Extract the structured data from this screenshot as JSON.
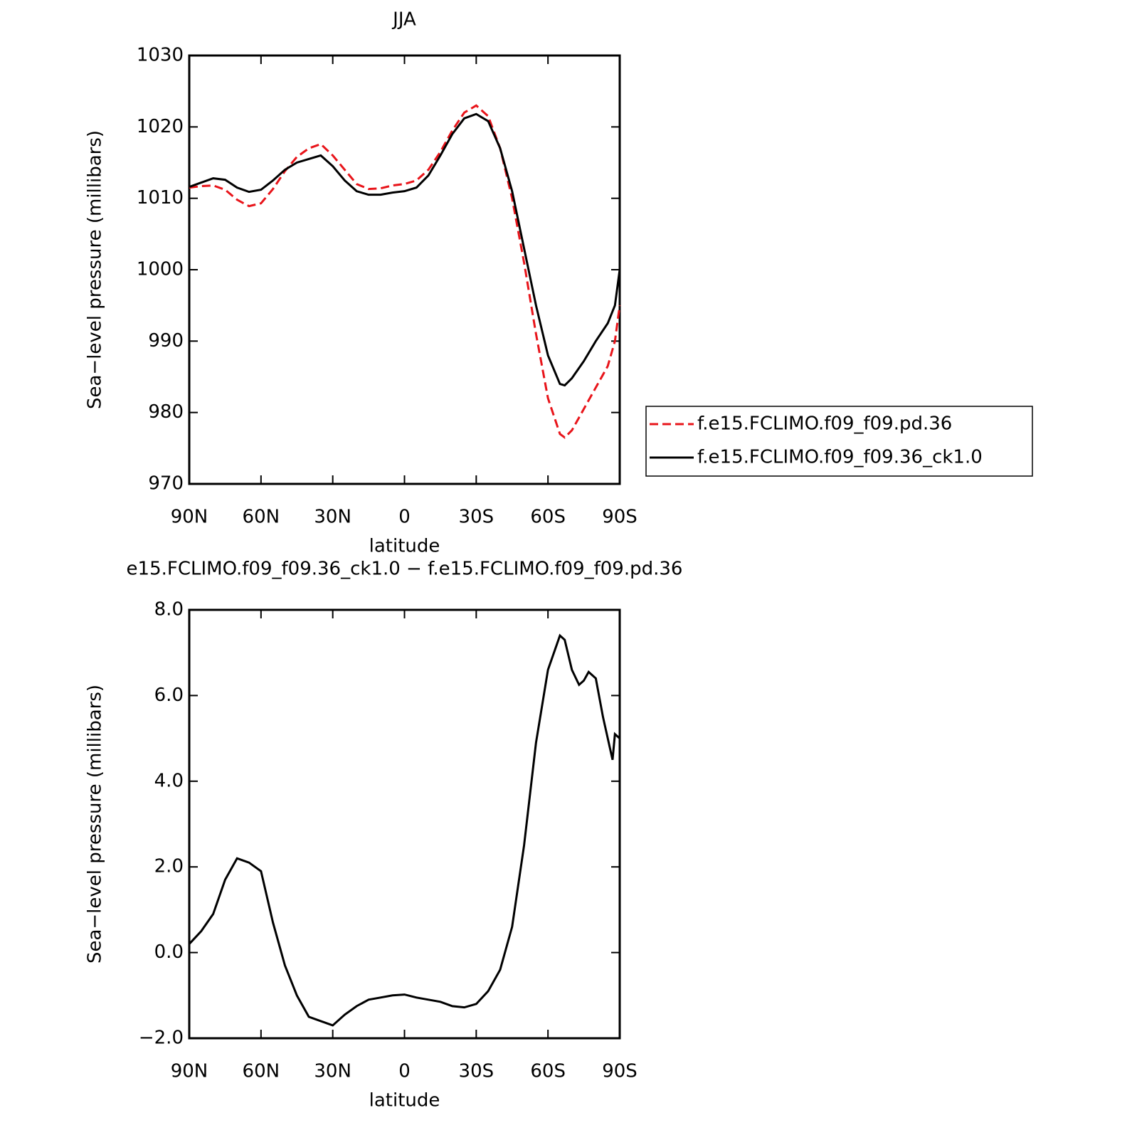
{
  "chart_data": [
    {
      "type": "line",
      "title": "JJA",
      "xlabel": "latitude",
      "ylabel": "Sea−level pressure (millibars)",
      "x": [
        90,
        85,
        80,
        75,
        70,
        65,
        60,
        55,
        50,
        45,
        40,
        35,
        30,
        25,
        20,
        15,
        10,
        5,
        0,
        -5,
        -10,
        -15,
        -20,
        -25,
        -30,
        -35,
        -40,
        -45,
        -50,
        -55,
        -60,
        -65,
        -67,
        -70,
        -75,
        -80,
        -85,
        -88,
        -90
      ],
      "series": [
        {
          "name": "f.e15.FCLIMO.f09_f09.pd.36",
          "color": "#e8141a",
          "dashed": true,
          "values": [
            1011.5,
            1011.7,
            1011.8,
            1011.2,
            1009.8,
            1008.9,
            1009.3,
            1011.3,
            1013.8,
            1015.8,
            1017.0,
            1017.6,
            1016.0,
            1014.0,
            1012.0,
            1011.3,
            1011.4,
            1011.8,
            1012.0,
            1012.5,
            1014.0,
            1016.5,
            1019.5,
            1022.0,
            1023.0,
            1021.5,
            1017.0,
            1010.0,
            1001.0,
            991.0,
            982.0,
            977.0,
            976.5,
            977.5,
            980.5,
            983.5,
            986.5,
            990.0,
            995.0
          ]
        },
        {
          "name": "f.e15.FCLIMO.f09_f09.36_ck1.0",
          "color": "#000000",
          "dashed": false,
          "values": [
            1011.6,
            1012.2,
            1012.8,
            1012.6,
            1011.5,
            1010.9,
            1011.2,
            1012.5,
            1014.0,
            1015.0,
            1015.5,
            1016.0,
            1014.5,
            1012.5,
            1011.0,
            1010.5,
            1010.5,
            1010.8,
            1011.0,
            1011.5,
            1013.2,
            1016.0,
            1019.0,
            1021.2,
            1021.8,
            1020.8,
            1017.0,
            1011.0,
            1003.0,
            995.0,
            988.0,
            984.0,
            983.8,
            984.8,
            987.2,
            990.0,
            992.5,
            995.0,
            1000.0
          ]
        }
      ],
      "xlim": [
        90,
        -90
      ],
      "xticks": [
        {
          "value": 90,
          "label": "90N"
        },
        {
          "value": 60,
          "label": "60N"
        },
        {
          "value": 30,
          "label": "30N"
        },
        0,
        {
          "value": -30,
          "label": "30S"
        },
        {
          "value": -60,
          "label": "60S"
        },
        {
          "value": -90,
          "label": "90S"
        }
      ],
      "ylim": [
        970,
        1030
      ],
      "yticks": [
        970,
        980,
        990,
        1000,
        1010,
        1020,
        1030
      ],
      "legend": "right"
    },
    {
      "type": "line",
      "title": "e15.FCLIMO.f09_f09.36_ck1.0 − f.e15.FCLIMO.f09_f09.pd.36",
      "xlabel": "latitude",
      "ylabel": "Sea−level pressure (millibars)",
      "x": [
        90,
        85,
        80,
        75,
        70,
        65,
        60,
        55,
        50,
        45,
        40,
        35,
        30,
        25,
        20,
        15,
        10,
        5,
        0,
        -5,
        -10,
        -15,
        -20,
        -25,
        -30,
        -35,
        -40,
        -45,
        -50,
        -55,
        -60,
        -65,
        -67,
        -70,
        -73,
        -75,
        -77,
        -80,
        -83,
        -85,
        -87,
        -88,
        -90
      ],
      "color": "#000000",
      "values": [
        0.2,
        0.5,
        0.9,
        1.7,
        2.2,
        2.1,
        1.9,
        0.7,
        -0.3,
        -1.0,
        -1.5,
        -1.6,
        -1.7,
        -1.45,
        -1.25,
        -1.1,
        -1.05,
        -1.0,
        -0.98,
        -1.05,
        -1.1,
        -1.15,
        -1.25,
        -1.28,
        -1.2,
        -0.9,
        -0.4,
        0.6,
        2.5,
        4.9,
        6.6,
        7.4,
        7.3,
        6.6,
        6.25,
        6.35,
        6.55,
        6.4,
        5.5,
        5.0,
        4.5,
        5.1,
        5.0
      ],
      "xlim": [
        90,
        -90
      ],
      "xticks": [
        {
          "value": 90,
          "label": "90N"
        },
        {
          "value": 60,
          "label": "60N"
        },
        {
          "value": 30,
          "label": "30N"
        },
        0,
        {
          "value": -30,
          "label": "30S"
        },
        {
          "value": -60,
          "label": "60S"
        },
        {
          "value": -90,
          "label": "90S"
        }
      ],
      "ylim": [
        -2,
        8
      ],
      "yticks": [
        {
          "value": -2,
          "label": "−2.0"
        },
        {
          "value": 0,
          "label": "0.0"
        },
        {
          "value": 2,
          "label": "2.0"
        },
        {
          "value": 4,
          "label": "4.0"
        },
        {
          "value": 6,
          "label": "6.0"
        },
        {
          "value": 8,
          "label": "8.0"
        }
      ]
    }
  ]
}
